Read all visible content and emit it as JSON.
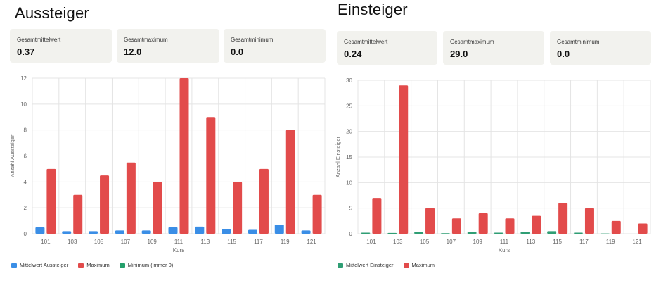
{
  "colors": {
    "mean_blue": "#3a8ee6",
    "max_red": "#e24b4b",
    "min_green": "#24a06b",
    "mean_green": "#2f9e74",
    "grid": "#e4e4e4",
    "axis_text": "#666666",
    "card_bg": "#f2f2ee"
  },
  "left": {
    "title": "Aussteiger",
    "stats": [
      {
        "label": "Gesamtmittelwert",
        "value": "0.37"
      },
      {
        "label": "Gesamtmaximum",
        "value": "12.0"
      },
      {
        "label": "Gesamtminimum",
        "value": "0.0"
      }
    ],
    "legend": [
      {
        "label": "Mittelwert Aussteiger",
        "color": "#3a8ee6"
      },
      {
        "label": "Maximum",
        "color": "#e24b4b"
      },
      {
        "label": "Minimum (immer 0)",
        "color": "#24a06b"
      }
    ]
  },
  "right": {
    "title": "Einsteiger",
    "stats": [
      {
        "label": "Gesamtmittelwert",
        "value": "0.24"
      },
      {
        "label": "Gesamtmaximum",
        "value": "29.0"
      },
      {
        "label": "Gesamtminimum",
        "value": "0.0"
      }
    ],
    "legend": [
      {
        "label": "Mittelwert Einsteiger",
        "color": "#2f9e74"
      },
      {
        "label": "Maximum",
        "color": "#e24b4b"
      }
    ]
  },
  "chart_data": [
    {
      "type": "bar",
      "title": "Aussteiger",
      "xlabel": "Kurs",
      "ylabel": "Anzahl Aussteiger",
      "ylim": [
        0,
        12
      ],
      "yticks": [
        0,
        2,
        4,
        6,
        8,
        10,
        12
      ],
      "grid": true,
      "legend_position": "bottom-left",
      "categories": [
        "101",
        "103",
        "105",
        "107",
        "109",
        "111",
        "113",
        "115",
        "117",
        "119",
        "121"
      ],
      "series": [
        {
          "name": "Mittelwert Aussteiger",
          "color": "#3a8ee6",
          "values": [
            0.5,
            0.2,
            0.2,
            0.25,
            0.25,
            0.5,
            0.55,
            0.35,
            0.3,
            0.7,
            0.25
          ]
        },
        {
          "name": "Maximum",
          "color": "#e24b4b",
          "values": [
            5,
            3,
            4.5,
            5.5,
            4,
            12,
            9,
            4,
            5,
            8,
            3
          ]
        },
        {
          "name": "Minimum (immer 0)",
          "color": "#24a06b",
          "values": [
            0,
            0,
            0,
            0,
            0,
            0,
            0,
            0,
            0,
            0,
            0
          ]
        }
      ]
    },
    {
      "type": "bar",
      "title": "Einsteiger",
      "xlabel": "Kurs",
      "ylabel": "Anzahl Einsteiger",
      "ylim": [
        0,
        30
      ],
      "yticks": [
        0,
        5,
        10,
        15,
        20,
        25,
        30
      ],
      "grid": true,
      "legend_position": "bottom-left",
      "categories": [
        "101",
        "103",
        "105",
        "107",
        "109",
        "111",
        "113",
        "115",
        "117",
        "119",
        "121"
      ],
      "series": [
        {
          "name": "Mittelwert Einsteiger",
          "color": "#2f9e74",
          "values": [
            0.2,
            0.15,
            0.3,
            0.1,
            0.3,
            0.2,
            0.3,
            0.5,
            0.2,
            0.05,
            0.0
          ]
        },
        {
          "name": "Maximum",
          "color": "#e24b4b",
          "values": [
            7,
            29,
            5,
            3,
            4,
            3,
            3.5,
            6,
            5,
            2.5,
            2
          ]
        }
      ]
    }
  ]
}
